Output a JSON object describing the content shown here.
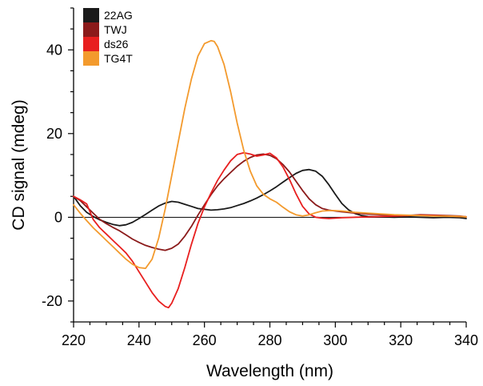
{
  "chart_data": {
    "type": "line",
    "title": "",
    "xlabel": "Wavelength (nm)",
    "ylabel": "CD signal (mdeg)",
    "xlim": [
      220,
      340
    ],
    "ylim": [
      -25,
      50
    ],
    "xticks": [
      220,
      240,
      260,
      280,
      300,
      320,
      340
    ],
    "yticks": [
      -20,
      0,
      20,
      40
    ],
    "xtick_labels": [
      "220",
      "240",
      "260",
      "280",
      "300",
      "320",
      "340"
    ],
    "ytick_labels": [
      "-20",
      "0",
      "20",
      "40"
    ],
    "zero_line": true,
    "grid": false,
    "legend_position": "top-left",
    "series": [
      {
        "name": "22AG",
        "color": "#1a1a1a",
        "x": [
          220,
          222,
          224,
          226,
          228,
          230,
          232,
          234,
          236,
          238,
          240,
          242,
          244,
          246,
          248,
          250,
          252,
          254,
          256,
          258,
          260,
          262,
          264,
          266,
          268,
          270,
          272,
          274,
          276,
          278,
          280,
          282,
          284,
          286,
          288,
          290,
          292,
          294,
          296,
          298,
          300,
          302,
          304,
          306,
          308,
          310,
          314,
          318,
          322,
          326,
          330,
          334,
          338,
          340
        ],
        "y": [
          5,
          2.8,
          1.2,
          0.2,
          -0.6,
          -1.2,
          -1.7,
          -2,
          -1.8,
          -1.2,
          -0.3,
          0.7,
          1.7,
          2.7,
          3.4,
          3.8,
          3.6,
          3.1,
          2.6,
          2.1,
          1.9,
          1.7,
          1.8,
          2,
          2.3,
          2.8,
          3.3,
          3.9,
          4.6,
          5.4,
          6.3,
          7.3,
          8.4,
          9.5,
          10.5,
          11.2,
          11.4,
          11,
          9.8,
          7.8,
          5.5,
          3.3,
          1.8,
          0.9,
          0.4,
          0.2,
          0.1,
          0,
          0.1,
          0,
          -0.1,
          0,
          -0.1,
          -0.3
        ]
      },
      {
        "name": "TWJ",
        "color": "#8b1a1a",
        "x": [
          220,
          222,
          224,
          226,
          228,
          230,
          232,
          234,
          236,
          238,
          240,
          242,
          244,
          246,
          248,
          250,
          252,
          254,
          256,
          258,
          260,
          262,
          264,
          266,
          268,
          270,
          272,
          274,
          276,
          278,
          280,
          282,
          284,
          286,
          288,
          290,
          292,
          294,
          296,
          298,
          300,
          302,
          306,
          310,
          314,
          318,
          322,
          326,
          330,
          334,
          338,
          340
        ],
        "y": [
          5,
          4,
          2.5,
          1,
          -0.5,
          -1.5,
          -2.4,
          -3.2,
          -4.2,
          -5.2,
          -6,
          -6.7,
          -7.2,
          -7.6,
          -7.9,
          -7.4,
          -6.4,
          -4.5,
          -2.2,
          0.5,
          3,
          5.4,
          7.5,
          9.2,
          10.7,
          12.2,
          13.4,
          14.3,
          14.9,
          15.1,
          14.8,
          14,
          12.6,
          10.8,
          8.6,
          6.4,
          4.4,
          3,
          2.1,
          1.7,
          1.5,
          1.3,
          1,
          0.8,
          0.6,
          0.5,
          0.4,
          0.6,
          0.5,
          0.4,
          0.3,
          0.1
        ]
      },
      {
        "name": "ds26",
        "color": "#e81f1f",
        "x": [
          220,
          222,
          224,
          226,
          228,
          230,
          232,
          234,
          236,
          238,
          240,
          242,
          244,
          246,
          248,
          249,
          250,
          252,
          254,
          256,
          258,
          260,
          262,
          264,
          266,
          268,
          270,
          272,
          274,
          276,
          278,
          280,
          282,
          284,
          286,
          288,
          290,
          292,
          294,
          296,
          298,
          300,
          302,
          306,
          310,
          314,
          318,
          322,
          326,
          330,
          334,
          338,
          340
        ],
        "y": [
          5,
          4.2,
          3.2,
          -0.5,
          -2.5,
          -4,
          -5.5,
          -7,
          -8.5,
          -10.5,
          -13,
          -15.5,
          -18,
          -20,
          -21.3,
          -21.6,
          -20.5,
          -17,
          -12,
          -6.5,
          -1.5,
          2.5,
          5.8,
          8.8,
          11.3,
          13.5,
          15,
          15.4,
          15.1,
          14.6,
          14.9,
          15.3,
          14.2,
          12,
          9,
          5.6,
          2.6,
          0.8,
          0,
          -0.2,
          -0.3,
          -0.2,
          -0.1,
          0,
          0.1,
          0.2,
          0.3,
          0.4,
          0.5,
          0.4,
          0.3,
          0.2,
          0.1
        ]
      },
      {
        "name": "TG4T",
        "color": "#f39a2d",
        "x": [
          220,
          222,
          224,
          226,
          228,
          230,
          232,
          234,
          236,
          238,
          240,
          242,
          244,
          246,
          248,
          250,
          252,
          254,
          256,
          258,
          260,
          262,
          263,
          264,
          266,
          268,
          270,
          272,
          274,
          276,
          278,
          280,
          282,
          284,
          286,
          288,
          290,
          292,
          294,
          296,
          298,
          300,
          302,
          306,
          310,
          314,
          318,
          322,
          326,
          330,
          334,
          338,
          340
        ],
        "y": [
          3,
          1,
          -0.8,
          -2.5,
          -4,
          -5.5,
          -7,
          -8.5,
          -10,
          -11.2,
          -12,
          -12.2,
          -10,
          -5,
          2,
          10,
          18,
          26,
          33,
          38.5,
          41.5,
          42.2,
          42,
          40.8,
          36.5,
          30,
          22.5,
          16,
          11,
          7.5,
          5.5,
          4.4,
          3.6,
          2.4,
          1.3,
          0.6,
          0.3,
          0.6,
          1.1,
          1.5,
          1.6,
          1.6,
          1.5,
          1.2,
          1,
          0.8,
          0.6,
          0.5,
          0.4,
          0.3,
          0.3,
          0.2,
          0.1
        ]
      }
    ]
  }
}
